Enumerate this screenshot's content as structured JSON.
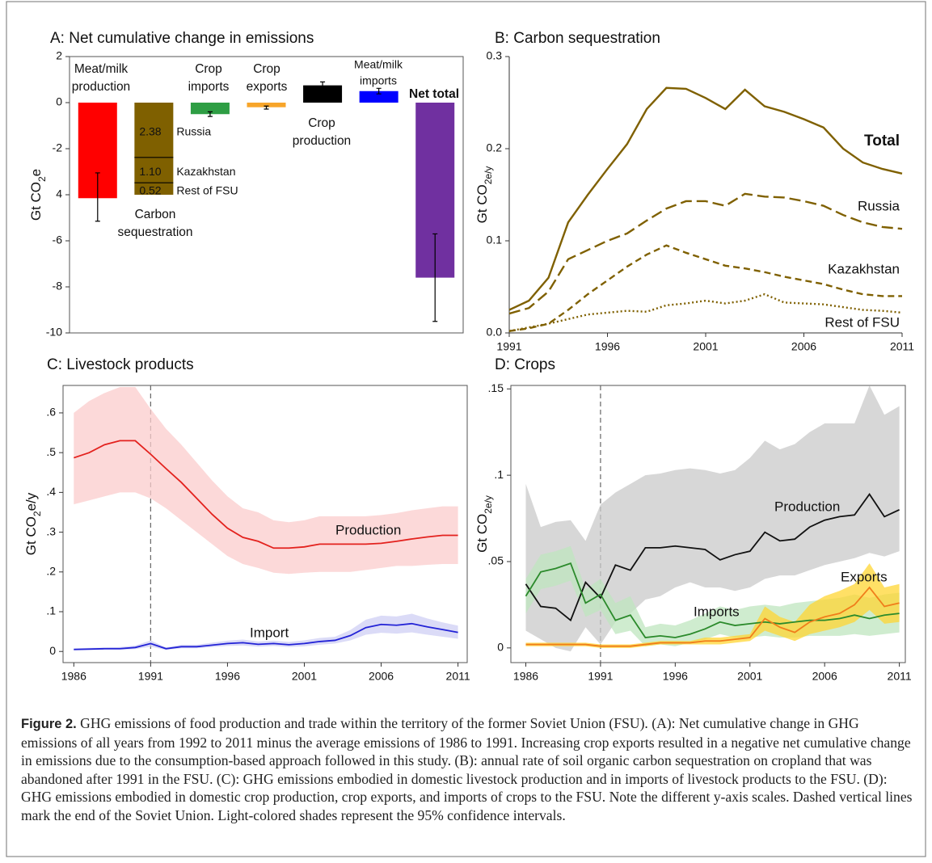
{
  "chart_data": [
    {
      "type": "bar",
      "title": "A: Net cumulative change in emissions",
      "ylabel": [
        "Gt CO",
        "2",
        "e"
      ],
      "categories": [
        [
          "Meat/milk",
          "production"
        ],
        [
          "Carbon",
          "sequestration"
        ],
        [
          "Crop",
          "imports"
        ],
        [
          "Crop",
          "exports"
        ],
        [
          "Crop",
          "production"
        ],
        [
          "Meat/milk",
          "imports"
        ],
        [
          "Net total"
        ]
      ],
      "values": [
        -4.15,
        null,
        -0.5,
        -0.2,
        0.75,
        0.5,
        -7.6
      ],
      "ci_low": [
        -5.15,
        null,
        -0.6,
        -0.28,
        0.6,
        0.38,
        -9.5
      ],
      "ci_high": [
        -3.05,
        null,
        -0.4,
        -0.15,
        0.9,
        0.62,
        -5.7
      ],
      "colors": [
        "#ff0000",
        "#7f6000",
        "#2e9e44",
        "#f7a52a",
        "#000000",
        "#0000ff",
        "#7030a0"
      ],
      "segments": [
        {
          "name": "Russia",
          "value": -2.38,
          "value_label": "2.38"
        },
        {
          "name": "Kazakhstan",
          "value": -1.1,
          "value_label": "1.10"
        },
        {
          "name": "Rest of FSU",
          "value": -0.52,
          "value_label": "0.52"
        }
      ],
      "ylim": [
        -10,
        2
      ],
      "yticks": [
        -10,
        -8,
        -6,
        {
          "value": -4,
          "label": "4"
        },
        -2,
        0,
        2
      ]
    },
    {
      "type": "line",
      "title": "B: Carbon sequestration",
      "ylabel": [
        "Gt CO",
        "2e/y"
      ],
      "x": [
        1991,
        1992,
        1993,
        1994,
        1995,
        1996,
        1997,
        1998,
        1999,
        2000,
        2001,
        2002,
        2003,
        2004,
        2005,
        2006,
        2007,
        2008,
        2009,
        2010,
        2011
      ],
      "xlim": [
        1991,
        2011
      ],
      "xticks": [
        1991,
        1996,
        2001,
        2006,
        2011
      ],
      "ylim": [
        0,
        0.3
      ],
      "yticks": [
        {
          "value": 0,
          "label": "0.0"
        },
        {
          "value": 0.1,
          "label": "0.1"
        },
        {
          "value": 0.2,
          "label": "0.2"
        },
        {
          "value": 0.3,
          "label": "0.3"
        }
      ],
      "series": [
        {
          "name": "Total",
          "color": "#7f6000",
          "style": "solid",
          "values": [
            0.025,
            0.035,
            0.06,
            0.12,
            0.15,
            0.178,
            0.205,
            0.243,
            0.266,
            0.265,
            0.255,
            0.243,
            0.264,
            0.246,
            0.24,
            0.232,
            0.223,
            0.2,
            0.185,
            0.178,
            0.173
          ]
        },
        {
          "name": "Russia",
          "color": "#7f6000",
          "style": "longdash",
          "values": [
            0.021,
            0.027,
            0.045,
            0.08,
            0.09,
            0.1,
            0.108,
            0.122,
            0.135,
            0.143,
            0.143,
            0.138,
            0.151,
            0.148,
            0.147,
            0.143,
            0.138,
            0.128,
            0.12,
            0.115,
            0.113
          ]
        },
        {
          "name": "Kazakhstan",
          "color": "#7f6000",
          "style": "dash",
          "values": [
            0.002,
            0.005,
            0.01,
            0.025,
            0.042,
            0.057,
            0.072,
            0.085,
            0.095,
            0.087,
            0.08,
            0.073,
            0.07,
            0.066,
            0.061,
            0.057,
            0.053,
            0.047,
            0.042,
            0.04,
            0.04
          ]
        },
        {
          "name": "Rest of FSU",
          "color": "#7f6000",
          "style": "dot",
          "values": [
            0.002,
            0.006,
            0.01,
            0.015,
            0.02,
            0.022,
            0.024,
            0.023,
            0.03,
            0.032,
            0.035,
            0.032,
            0.035,
            0.042,
            0.033,
            0.032,
            0.031,
            0.028,
            0.025,
            0.024,
            0.022
          ]
        }
      ]
    },
    {
      "type": "line",
      "title": "C: Livestock products",
      "ylabel": [
        "Gt CO",
        "2",
        "e/y"
      ],
      "x": [
        1986,
        1987,
        1988,
        1989,
        1990,
        1991,
        1992,
        1993,
        1994,
        1995,
        1996,
        1997,
        1998,
        1999,
        2000,
        2001,
        2002,
        2003,
        2004,
        2005,
        2006,
        2007,
        2008,
        2009,
        2010,
        2011
      ],
      "xlim": [
        1985.3,
        2011.6
      ],
      "xticks": [
        1986,
        1991,
        1996,
        2001,
        2006,
        2011
      ],
      "ylim": [
        -0.028,
        0.669
      ],
      "yticks": [
        0,
        {
          "value": 0.1,
          "label": ".1"
        },
        {
          "value": 0.2,
          "label": ".2"
        },
        {
          "value": 0.3,
          "label": ".3"
        },
        {
          "value": 0.4,
          "label": ".4"
        },
        {
          "value": 0.5,
          "label": ".5"
        },
        {
          "value": 0.6,
          "label": ".6"
        }
      ],
      "vlines": [
        1991
      ],
      "series": [
        {
          "name": "Production",
          "color": "#e3221e",
          "band_color": "#fbcccc",
          "values": [
            0.487,
            0.5,
            0.52,
            0.53,
            0.53,
            0.496,
            0.46,
            0.425,
            0.385,
            0.345,
            0.31,
            0.287,
            0.277,
            0.26,
            0.26,
            0.263,
            0.27,
            0.27,
            0.27,
            0.27,
            0.272,
            0.277,
            0.283,
            0.288,
            0.292,
            0.292
          ],
          "ci_low": [
            0.37,
            0.38,
            0.39,
            0.4,
            0.4,
            0.385,
            0.36,
            0.33,
            0.3,
            0.27,
            0.24,
            0.22,
            0.21,
            0.198,
            0.195,
            0.198,
            0.2,
            0.2,
            0.2,
            0.205,
            0.21,
            0.215,
            0.215,
            0.218,
            0.22,
            0.22
          ],
          "ci_high": [
            0.6,
            0.63,
            0.65,
            0.665,
            0.665,
            0.61,
            0.56,
            0.52,
            0.475,
            0.43,
            0.39,
            0.36,
            0.35,
            0.33,
            0.325,
            0.33,
            0.34,
            0.34,
            0.34,
            0.34,
            0.343,
            0.348,
            0.355,
            0.36,
            0.365,
            0.365
          ]
        },
        {
          "name": "Import",
          "color": "#2323d6",
          "band_color": "#cfcff4",
          "values": [
            0.005,
            0.006,
            0.007,
            0.007,
            0.01,
            0.02,
            0.007,
            0.012,
            0.012,
            0.016,
            0.02,
            0.022,
            0.018,
            0.02,
            0.017,
            0.02,
            0.025,
            0.028,
            0.04,
            0.06,
            0.068,
            0.066,
            0.07,
            0.062,
            0.055,
            0.048
          ],
          "ci_low": [
            0.003,
            0.003,
            0.004,
            0.004,
            0.006,
            0.012,
            0.004,
            0.008,
            0.008,
            0.011,
            0.014,
            0.015,
            0.012,
            0.014,
            0.011,
            0.013,
            0.017,
            0.02,
            0.028,
            0.042,
            0.047,
            0.045,
            0.048,
            0.042,
            0.037,
            0.032
          ],
          "ci_high": [
            0.008,
            0.009,
            0.01,
            0.011,
            0.015,
            0.028,
            0.01,
            0.017,
            0.017,
            0.022,
            0.027,
            0.03,
            0.025,
            0.027,
            0.024,
            0.028,
            0.034,
            0.037,
            0.054,
            0.08,
            0.09,
            0.088,
            0.095,
            0.083,
            0.073,
            0.065
          ]
        }
      ]
    },
    {
      "type": "line",
      "title": "D: Crops",
      "ylabel": [
        "Gt CO",
        "2e/y"
      ],
      "x": [
        1986,
        1987,
        1988,
        1989,
        1990,
        1991,
        1992,
        1993,
        1994,
        1995,
        1996,
        1997,
        1998,
        1999,
        2000,
        2001,
        2002,
        2003,
        2004,
        2005,
        2006,
        2007,
        2008,
        2009,
        2010,
        2011
      ],
      "xlim": [
        1985.0,
        2011.4
      ],
      "xticks": [
        1986,
        1991,
        1996,
        2001,
        2006,
        2011
      ],
      "ylim": [
        -0.0085,
        0.152
      ],
      "yticks": [
        0,
        {
          "value": 0.05,
          "label": ".05"
        },
        {
          "value": 0.1,
          "label": ".1"
        },
        {
          "value": 0.15,
          "label": ".15"
        }
      ],
      "vlines": [
        1991
      ],
      "series": [
        {
          "name": "Production",
          "color": "#111111",
          "band_color": "#c9c9c9",
          "values": [
            0.037,
            0.024,
            0.023,
            0.016,
            0.038,
            0.029,
            0.048,
            0.045,
            0.058,
            0.058,
            0.059,
            0.058,
            0.057,
            0.051,
            0.054,
            0.056,
            0.067,
            0.062,
            0.063,
            0.07,
            0.074,
            0.076,
            0.077,
            0.089,
            0.076,
            0.08
          ],
          "ci_low": [
            0.01,
            0.005,
            0.0,
            -0.002,
            0.012,
            0.002,
            0.015,
            0.02,
            0.028,
            0.03,
            0.035,
            0.038,
            0.035,
            0.035,
            0.033,
            0.035,
            0.04,
            0.042,
            0.042,
            0.045,
            0.048,
            0.05,
            0.052,
            0.055,
            0.053,
            0.056
          ],
          "ci_high": [
            0.095,
            0.07,
            0.073,
            0.074,
            0.062,
            0.083,
            0.09,
            0.095,
            0.1,
            0.101,
            0.103,
            0.104,
            0.103,
            0.101,
            0.103,
            0.11,
            0.12,
            0.115,
            0.118,
            0.125,
            0.13,
            0.13,
            0.13,
            0.152,
            0.135,
            0.14
          ]
        },
        {
          "name": "Imports",
          "color": "#2b8a2b",
          "band_color": "#bfe6bf",
          "values": [
            0.03,
            0.044,
            0.046,
            0.049,
            0.026,
            0.031,
            0.016,
            0.019,
            0.006,
            0.007,
            0.006,
            0.008,
            0.011,
            0.015,
            0.013,
            0.014,
            0.015,
            0.014,
            0.015,
            0.016,
            0.016,
            0.017,
            0.019,
            0.017,
            0.019,
            0.02
          ],
          "ci_low": [
            0.02,
            0.034,
            0.036,
            0.039,
            0.018,
            0.022,
            0.008,
            0.01,
            0.001,
            0.002,
            0.001,
            0.003,
            0.005,
            0.008,
            0.006,
            0.006,
            0.007,
            0.006,
            0.006,
            0.007,
            0.007,
            0.007,
            0.008,
            0.007,
            0.008,
            0.009
          ],
          "ci_high": [
            0.04,
            0.054,
            0.056,
            0.059,
            0.034,
            0.04,
            0.026,
            0.03,
            0.012,
            0.014,
            0.013,
            0.016,
            0.02,
            0.024,
            0.022,
            0.024,
            0.025,
            0.024,
            0.026,
            0.027,
            0.028,
            0.029,
            0.031,
            0.029,
            0.031,
            0.032
          ]
        },
        {
          "name": "Exports",
          "color": "#f07d1a",
          "band_color": "#ffd633",
          "values": [
            0.002,
            0.002,
            0.002,
            0.002,
            0.002,
            0.001,
            0.001,
            0.001,
            0.002,
            0.003,
            0.003,
            0.003,
            0.004,
            0.004,
            0.005,
            0.006,
            0.017,
            0.012,
            0.009,
            0.015,
            0.018,
            0.02,
            0.025,
            0.035,
            0.024,
            0.026
          ],
          "ci_low": [
            0.001,
            0.001,
            0.001,
            0.001,
            0.001,
            0.0,
            0.0,
            0.0,
            0.001,
            0.002,
            0.002,
            0.002,
            0.002,
            0.002,
            0.003,
            0.004,
            0.01,
            0.007,
            0.004,
            0.008,
            0.01,
            0.012,
            0.015,
            0.022,
            0.014,
            0.015
          ],
          "ci_high": [
            0.003,
            0.003,
            0.003,
            0.003,
            0.003,
            0.002,
            0.002,
            0.002,
            0.003,
            0.004,
            0.004,
            0.004,
            0.006,
            0.006,
            0.007,
            0.008,
            0.024,
            0.018,
            0.015,
            0.025,
            0.03,
            0.033,
            0.037,
            0.049,
            0.035,
            0.037
          ]
        }
      ]
    }
  ],
  "caption": {
    "label": "Figure 2.",
    "text": "GHG emissions of food production and trade within the territory of the former Soviet Union (FSU). (A): Net cumulative change in GHG emissions of all years from 1992 to 2011 minus the average emissions of 1986 to 1991. Increasing crop exports resulted in a negative net cumulative change in emissions due to the consumption-based approach followed in this study. (B): annual rate of soil organic carbon sequestration on cropland that was abandoned after 1991 in the FSU. (C): GHG emissions embodied in domestic livestock production and in imports of livestock products to the FSU. (D): GHG emissions embodied in domestic crop production, crop exports, and imports of crops to the FSU. Note the different y-axis scales. Dashed vertical lines mark the end of the Soviet Union. Light-colored shades represent the 95% confidence intervals."
  }
}
